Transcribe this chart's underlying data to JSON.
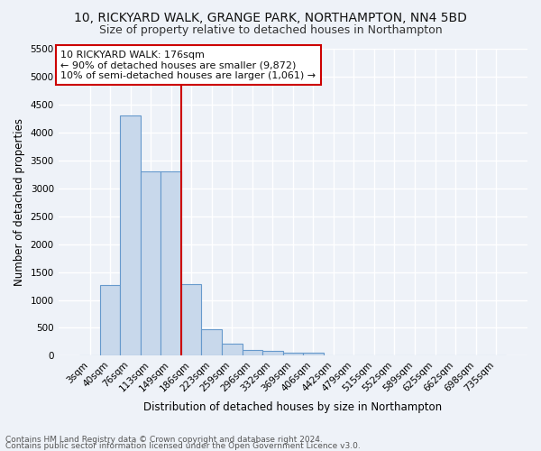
{
  "title1": "10, RICKYARD WALK, GRANGE PARK, NORTHAMPTON, NN4 5BD",
  "title2": "Size of property relative to detached houses in Northampton",
  "xlabel": "Distribution of detached houses by size in Northampton",
  "ylabel": "Number of detached properties",
  "categories": [
    "3sqm",
    "40sqm",
    "76sqm",
    "113sqm",
    "149sqm",
    "186sqm",
    "223sqm",
    "259sqm",
    "296sqm",
    "332sqm",
    "369sqm",
    "406sqm",
    "442sqm",
    "479sqm",
    "515sqm",
    "552sqm",
    "589sqm",
    "625sqm",
    "662sqm",
    "698sqm",
    "735sqm"
  ],
  "values": [
    0,
    1270,
    4300,
    3300,
    3300,
    1280,
    480,
    220,
    100,
    80,
    60,
    60,
    0,
    0,
    0,
    0,
    0,
    0,
    0,
    0,
    0
  ],
  "bar_color": "#c8d8eb",
  "bar_edge_color": "#6699cc",
  "bar_edge_width": 0.8,
  "red_line_index": 5,
  "red_line_color": "#cc0000",
  "ylim": [
    0,
    5500
  ],
  "yticks": [
    0,
    500,
    1000,
    1500,
    2000,
    2500,
    3000,
    3500,
    4000,
    4500,
    5000,
    5500
  ],
  "annotation_title": "10 RICKYARD WALK: 176sqm",
  "annotation_line1": "← 90% of detached houses are smaller (9,872)",
  "annotation_line2": "10% of semi-detached houses are larger (1,061) →",
  "annotation_box_color": "#ffffff",
  "annotation_box_edge": "#cc0000",
  "footer1": "Contains HM Land Registry data © Crown copyright and database right 2024.",
  "footer2": "Contains public sector information licensed under the Open Government Licence v3.0.",
  "bg_color": "#eef2f8",
  "grid_color": "#ffffff",
  "title_fontsize": 10,
  "subtitle_fontsize": 9,
  "axis_label_fontsize": 8.5,
  "tick_fontsize": 7.5,
  "footer_fontsize": 6.5,
  "annot_fontsize": 8
}
